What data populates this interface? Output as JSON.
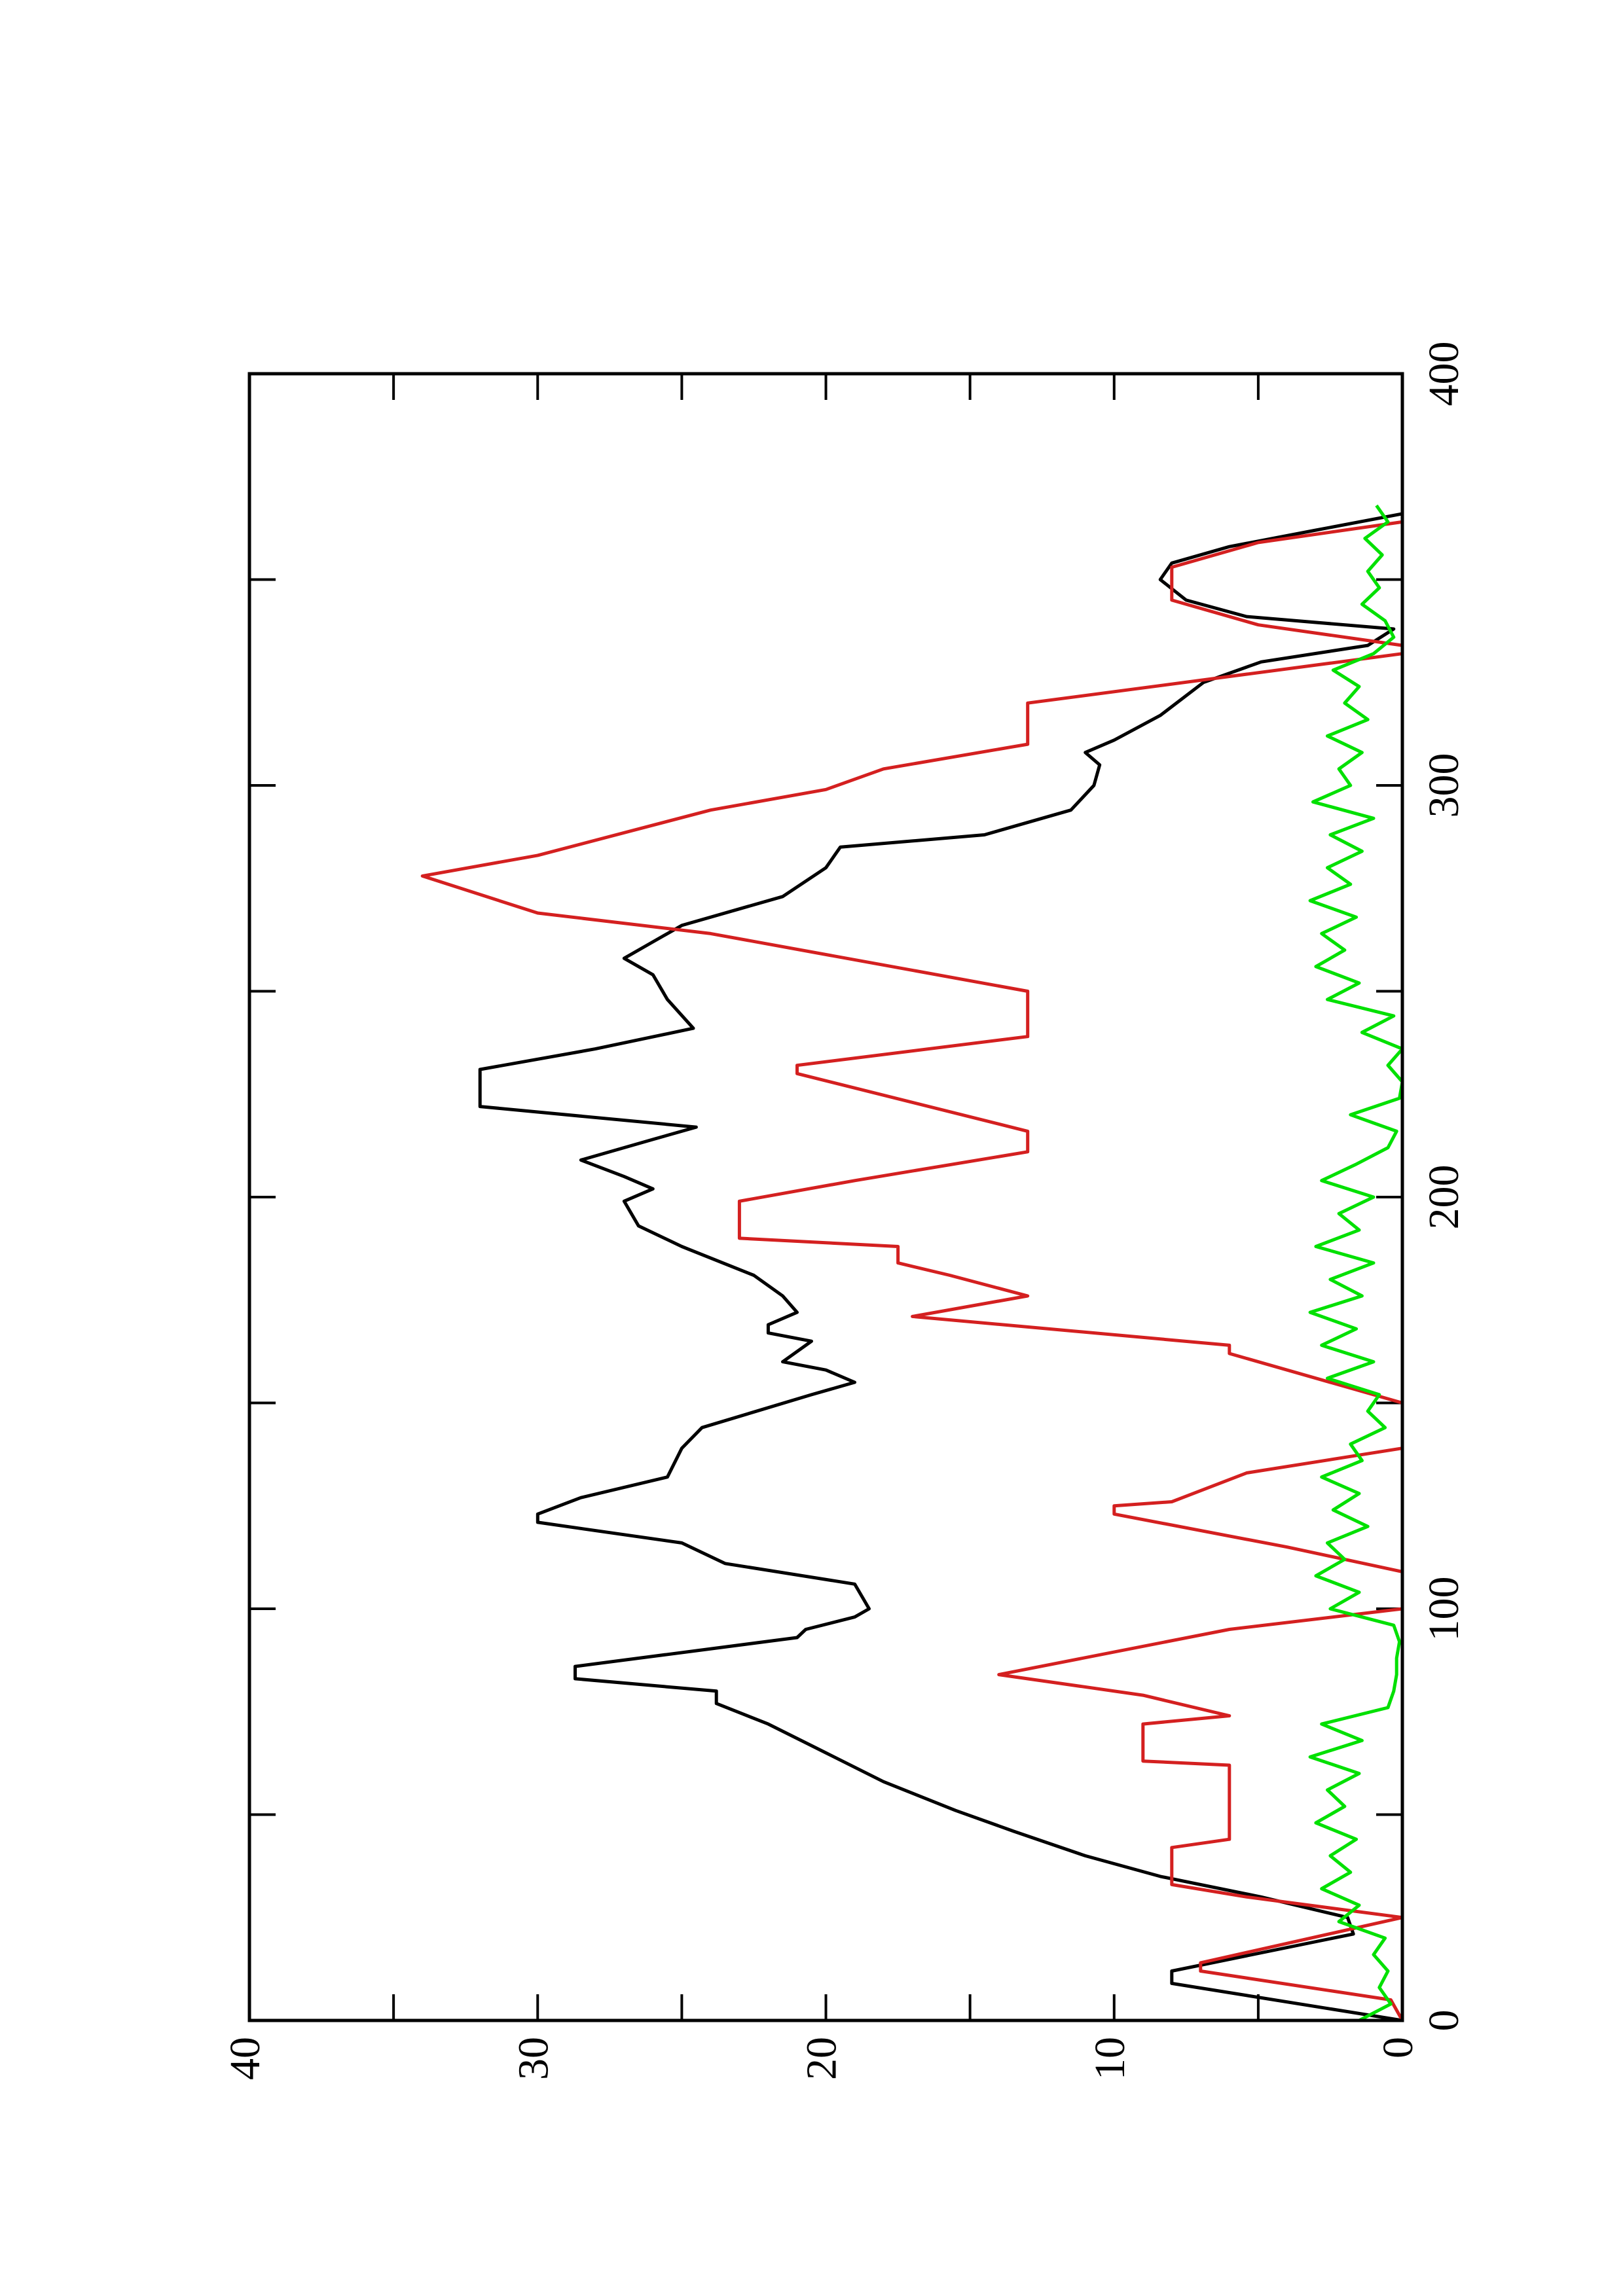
{
  "chart_data": {
    "type": "line",
    "xlim": [
      0,
      400
    ],
    "ylim": [
      0,
      40
    ],
    "xticks": [
      0,
      100,
      200,
      300,
      400
    ],
    "xminorticks": [
      50,
      150,
      250,
      350
    ],
    "yticks": [
      0,
      10,
      20,
      30,
      40
    ],
    "yminorticks": [
      5,
      15,
      25,
      35
    ],
    "series": [
      {
        "color": "#000000",
        "x": [
          0,
          9,
          12,
          21,
          25,
          30,
          35,
          40,
          46,
          51,
          58,
          65,
          72,
          77,
          80,
          83,
          86,
          93,
          95,
          98,
          100,
          106,
          111,
          116,
          121,
          123,
          127,
          132,
          139,
          144,
          152,
          155,
          158,
          160,
          165,
          167,
          169,
          172,
          176,
          181,
          188,
          193,
          199,
          202,
          205,
          209,
          214,
          217,
          222,
          231,
          236,
          241,
          248,
          254,
          258,
          262,
          266,
          270,
          273,
          280,
          285,
          288,
          294,
          300,
          305,
          308,
          311,
          317,
          325,
          330,
          334,
          338,
          341,
          345,
          350,
          354,
          358,
          362,
          366
        ],
        "values": [
          0,
          8,
          8,
          1.7,
          1.9,
          4.9,
          8.4,
          11,
          13.5,
          15.5,
          18,
          20,
          22,
          23.8,
          23.8,
          28.7,
          28.7,
          21,
          20.7,
          19,
          18.5,
          19,
          23.5,
          25,
          30,
          30,
          28.5,
          25.5,
          25,
          24.3,
          20.5,
          19,
          20,
          21.5,
          20.5,
          22,
          22,
          21,
          21.5,
          22.5,
          25,
          26.5,
          27,
          26,
          27,
          28.5,
          26,
          24.5,
          32,
          32,
          28,
          24.6,
          25.5,
          26,
          27,
          26,
          25,
          23,
          21.5,
          20,
          19.5,
          14.5,
          11.5,
          10.7,
          10.5,
          11,
          10,
          8.4,
          6.9,
          4.9,
          1.2,
          0.3,
          5.4,
          7.5,
          8.4,
          8,
          6,
          3,
          0
        ]
      },
      {
        "color": "#d42020",
        "x": [
          0,
          5,
          12,
          14,
          25,
          30,
          33,
          42,
          44,
          62,
          63,
          72,
          74,
          79,
          84,
          95,
          100,
          109,
          115,
          123,
          125,
          126,
          133,
          139,
          150,
          162,
          164,
          171,
          176,
          181,
          184,
          188,
          190,
          199,
          204,
          211,
          216,
          230,
          232,
          239,
          250,
          264,
          269,
          278,
          283,
          294,
          299,
          304,
          310,
          320,
          332,
          334,
          339,
          345,
          353,
          359,
          364
        ],
        "values": [
          0,
          0.4,
          7,
          7,
          0,
          5.4,
          8,
          8,
          6,
          6,
          9,
          9,
          6,
          9,
          14,
          6,
          0,
          0,
          4,
          10,
          10,
          8,
          5.4,
          0,
          0,
          6,
          6,
          17,
          13,
          15.7,
          17.5,
          17.5,
          23,
          23,
          19,
          13,
          13,
          21,
          21,
          13,
          13,
          24,
          30,
          34,
          30,
          24,
          20,
          18,
          13,
          13,
          0,
          0,
          5,
          8,
          8,
          5,
          0
        ]
      },
      {
        "color": "#00e000",
        "x": [
          0,
          4,
          8,
          12,
          16,
          20,
          24,
          28,
          32,
          36,
          40,
          44,
          48,
          52,
          56,
          60,
          64,
          68,
          72,
          76,
          80,
          84,
          88,
          92,
          96,
          100,
          104,
          108,
          112,
          116,
          120,
          124,
          128,
          132,
          136,
          140,
          144,
          148,
          152,
          156,
          160,
          164,
          168,
          172,
          176,
          180,
          184,
          188,
          192,
          196,
          200,
          204,
          208,
          212,
          216,
          220,
          224,
          228,
          232,
          236,
          240,
          244,
          248,
          252,
          256,
          260,
          264,
          268,
          272,
          276,
          280,
          284,
          288,
          292,
          296,
          300,
          304,
          308,
          312,
          316,
          320,
          324,
          328,
          332,
          336,
          340,
          344,
          348,
          352,
          356,
          360,
          364,
          368
        ],
        "values": [
          1.5,
          0.4,
          0.8,
          0.5,
          1,
          0.6,
          2.2,
          1.5,
          2.8,
          1.8,
          2.5,
          1.6,
          3,
          2,
          2.6,
          1.5,
          3.2,
          1.4,
          2.8,
          0.5,
          0.3,
          0.2,
          0.2,
          0.1,
          0.3,
          2.5,
          1.5,
          3,
          2,
          2.6,
          1.2,
          2.4,
          1.5,
          2.8,
          1.4,
          1.8,
          0.6,
          1.2,
          0.8,
          2.6,
          1,
          2.8,
          1.6,
          3.2,
          1.4,
          2.5,
          1,
          3,
          1.5,
          2.2,
          1,
          2.8,
          1.6,
          0.5,
          0.2,
          1.8,
          0.1,
          0,
          0.5,
          0,
          1.4,
          0.3,
          2.6,
          1.5,
          3,
          2,
          2.8,
          1.6,
          3.2,
          1.8,
          2.6,
          1.4,
          2.5,
          1,
          3.1,
          1.8,
          2.2,
          1.4,
          2.6,
          1.2,
          2,
          1.5,
          2.4,
          1,
          0.3,
          0.6,
          1.4,
          0.8,
          1.2,
          0.7,
          1.3,
          0.5,
          0.9
        ]
      }
    ]
  }
}
